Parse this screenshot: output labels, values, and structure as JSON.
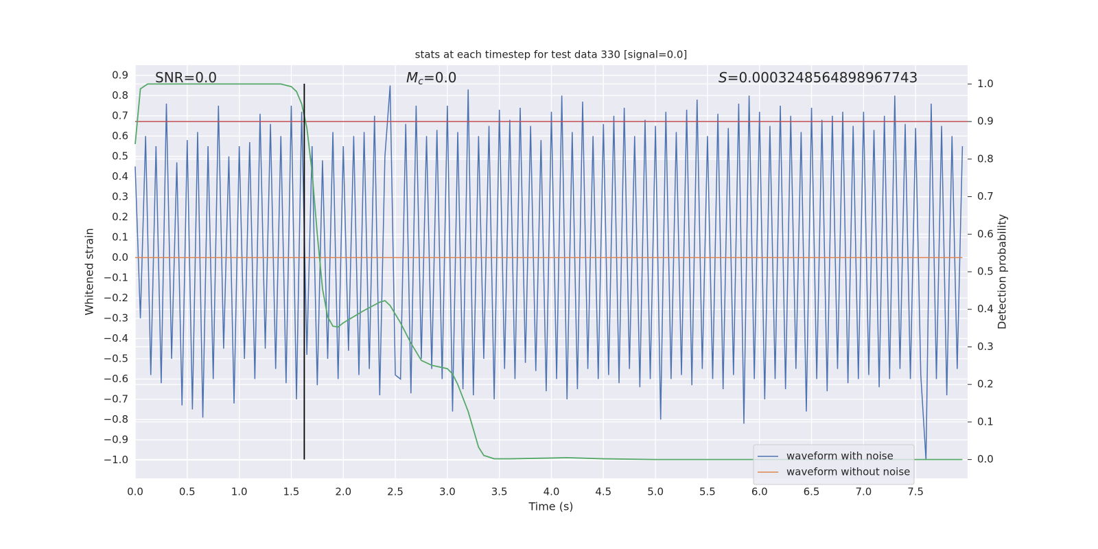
{
  "chart_data": {
    "type": "line",
    "title": "stats at each timestep for test data 330 [signal=0.0]",
    "xlabel": "Time (s)",
    "ylabel": "Whitened strain",
    "y2label": "Detection probability",
    "xlim": [
      0,
      8.0
    ],
    "ylim": [
      -1.09,
      0.95
    ],
    "y2lim": [
      -0.05,
      1.05
    ],
    "grid": true,
    "legend": "lower right",
    "xticks": [
      {
        "value": 0,
        "label": "0.0"
      },
      0.5,
      {
        "value": 1,
        "label": "1.0"
      },
      1.5,
      {
        "value": 2,
        "label": "2.0"
      },
      2.5,
      {
        "value": 3,
        "label": "3.0"
      },
      3.5,
      {
        "value": 4,
        "label": "4.0"
      },
      4.5,
      {
        "value": 5,
        "label": "5.0"
      },
      5.5,
      {
        "value": 6,
        "label": "6.0"
      },
      6.5,
      {
        "value": 7,
        "label": "7.0"
      },
      7.5
    ],
    "yticks": [
      0.9,
      0.8,
      0.7,
      0.6,
      0.5,
      0.4,
      0.3,
      0.2,
      0.1,
      {
        "value": 0,
        "label": "0.0"
      },
      {
        "value": -0.1,
        "label": "−0.1"
      },
      {
        "value": -0.2,
        "label": "−0.2"
      },
      {
        "value": -0.3,
        "label": "−0.3"
      },
      {
        "value": -0.4,
        "label": "−0.4"
      },
      {
        "value": -0.5,
        "label": "−0.5"
      },
      {
        "value": -0.6,
        "label": "−0.6"
      },
      {
        "value": -0.7,
        "label": "−0.7"
      },
      {
        "value": -0.8,
        "label": "−0.8"
      },
      {
        "value": -0.9,
        "label": "−0.9"
      },
      {
        "value": -1.0,
        "label": "−1.0"
      }
    ],
    "y2ticks": [
      {
        "value": 0,
        "label": "0.0"
      },
      0.1,
      0.2,
      0.3,
      0.4,
      0.5,
      0.6,
      0.7,
      0.8,
      0.9,
      {
        "value": 1,
        "label": "1.0"
      }
    ],
    "annotations": [
      {
        "text": "SNR=0.0"
      },
      {
        "symbol": "M",
        "subscript": "c",
        "text": "=0.0"
      },
      {
        "symbol": "S",
        "text": "=0.0003248564898967743"
      }
    ],
    "series": [
      {
        "name": "waveform with noise",
        "color": "#4c72b0",
        "x": [
          0,
          0.05,
          0.1,
          0.15,
          0.2,
          0.25,
          0.3,
          0.35,
          0.4,
          0.45,
          0.5,
          0.55,
          0.6,
          0.65,
          0.7,
          0.75,
          0.8,
          0.85,
          0.9,
          0.95,
          1,
          1.05,
          1.1,
          1.15,
          1.2,
          1.25,
          1.3,
          1.35,
          1.4,
          1.45,
          1.5,
          1.55,
          1.6,
          1.65,
          1.7,
          1.75,
          1.8,
          1.85,
          1.9,
          1.95,
          2,
          2.05,
          2.1,
          2.15,
          2.2,
          2.25,
          2.3,
          2.35,
          2.4,
          2.45,
          2.5,
          2.55,
          2.6,
          2.65,
          2.7,
          2.75,
          2.8,
          2.85,
          2.9,
          2.95,
          3,
          3.05,
          3.1,
          3.15,
          3.2,
          3.25,
          3.3,
          3.35,
          3.4,
          3.45,
          3.5,
          3.55,
          3.6,
          3.65,
          3.7,
          3.75,
          3.8,
          3.85,
          3.9,
          3.95,
          4,
          4.05,
          4.1,
          4.15,
          4.2,
          4.25,
          4.3,
          4.35,
          4.4,
          4.45,
          4.5,
          4.55,
          4.6,
          4.65,
          4.7,
          4.75,
          4.8,
          4.85,
          4.9,
          4.95,
          5,
          5.05,
          5.1,
          5.15,
          5.2,
          5.25,
          5.3,
          5.35,
          5.4,
          5.45,
          5.5,
          5.55,
          5.6,
          5.65,
          5.7,
          5.75,
          5.8,
          5.85,
          5.9,
          5.95,
          6,
          6.05,
          6.1,
          6.15,
          6.2,
          6.25,
          6.3,
          6.35,
          6.4,
          6.45,
          6.5,
          6.55,
          6.6,
          6.65,
          6.7,
          6.75,
          6.8,
          6.85,
          6.9,
          6.95,
          7,
          7.05,
          7.1,
          7.15,
          7.2,
          7.25,
          7.3,
          7.35,
          7.4,
          7.45,
          7.5,
          7.55,
          7.6,
          7.65,
          7.7,
          7.75,
          7.8,
          7.85,
          7.9,
          7.95
        ],
        "values": [
          0.45,
          -0.3,
          0.6,
          -0.58,
          0.55,
          -0.62,
          0.76,
          -0.5,
          0.47,
          -0.73,
          0.58,
          -0.75,
          0.62,
          -0.79,
          0.55,
          -0.6,
          0.75,
          -0.45,
          0.5,
          -0.72,
          0.55,
          -0.5,
          0.57,
          -0.6,
          0.71,
          -0.45,
          0.66,
          -0.55,
          0.6,
          -0.62,
          0.75,
          -0.7,
          0.72,
          -0.48,
          0.55,
          -0.63,
          0.48,
          -0.5,
          0.62,
          -0.6,
          0.55,
          -0.46,
          0.6,
          -0.58,
          0.62,
          -0.55,
          0.7,
          -0.68,
          0.5,
          0.85,
          -0.58,
          -0.6,
          0.66,
          -0.67,
          0.75,
          -0.5,
          0.6,
          -0.55,
          0.63,
          -0.6,
          0.75,
          -0.76,
          0.62,
          -0.65,
          0.83,
          -0.68,
          0.6,
          -0.5,
          0.65,
          -0.7,
          0.73,
          -0.55,
          0.68,
          -0.6,
          0.74,
          -0.52,
          0.65,
          -0.56,
          0.58,
          -0.66,
          0.72,
          -0.6,
          0.8,
          -0.7,
          0.62,
          -0.65,
          0.77,
          -0.55,
          0.6,
          -0.6,
          0.66,
          -0.58,
          0.7,
          -0.62,
          0.74,
          -0.55,
          0.6,
          -0.64,
          0.68,
          -0.6,
          0.65,
          -0.8,
          0.72,
          -0.6,
          0.62,
          -0.58,
          0.73,
          -0.63,
          0.78,
          -0.55,
          0.6,
          -0.6,
          0.71,
          -0.65,
          0.64,
          -0.58,
          0.76,
          -0.82,
          0.8,
          -0.6,
          0.72,
          -0.7,
          0.65,
          -0.6,
          0.75,
          -0.65,
          0.7,
          -0.55,
          0.62,
          -0.76,
          0.74,
          -0.6,
          0.68,
          -0.66,
          0.7,
          -0.55,
          0.72,
          -0.62,
          0.65,
          -0.6,
          0.72,
          -0.58,
          0.63,
          -0.64,
          0.7,
          -0.6,
          0.8,
          -0.55,
          0.66,
          -0.6,
          0.64,
          -0.58,
          -1.0,
          0.76,
          -0.6,
          0.65,
          -0.68,
          0.6,
          -0.55,
          0.55
        ]
      },
      {
        "name": "waveform without noise",
        "color": "#dd8452",
        "x": [
          0,
          7.95
        ],
        "values": [
          0,
          0
        ]
      }
    ],
    "probability": {
      "color": "#55a868",
      "axis": "y2",
      "x": [
        0,
        0.05,
        0.12,
        0.5,
        1,
        1.4,
        1.5,
        1.55,
        1.6,
        1.65,
        1.7,
        1.75,
        1.8,
        1.85,
        1.9,
        1.95,
        2,
        2.2,
        2.35,
        2.4,
        2.45,
        2.55,
        2.65,
        2.75,
        2.85,
        3,
        3.05,
        3.1,
        3.2,
        3.3,
        3.35,
        3.45,
        3.6,
        4,
        4.15,
        4.5,
        5,
        6,
        7,
        7.95
      ],
      "values": [
        0.84,
        0.987,
        1.0,
        1.0,
        1.0,
        1.0,
        0.993,
        0.98,
        0.947,
        0.883,
        0.765,
        0.6,
        0.455,
        0.38,
        0.355,
        0.353,
        0.364,
        0.397,
        0.419,
        0.423,
        0.41,
        0.364,
        0.31,
        0.264,
        0.251,
        0.242,
        0.228,
        0.2,
        0.128,
        0.033,
        0.011,
        0.002,
        0.002,
        0.004,
        0.005,
        0.002,
        0,
        0,
        0,
        0
      ]
    },
    "threshold": {
      "value": 0.9,
      "axis": "y2",
      "color": "#c44e52"
    },
    "vline": {
      "value": 1.625,
      "color": "#000000"
    }
  }
}
